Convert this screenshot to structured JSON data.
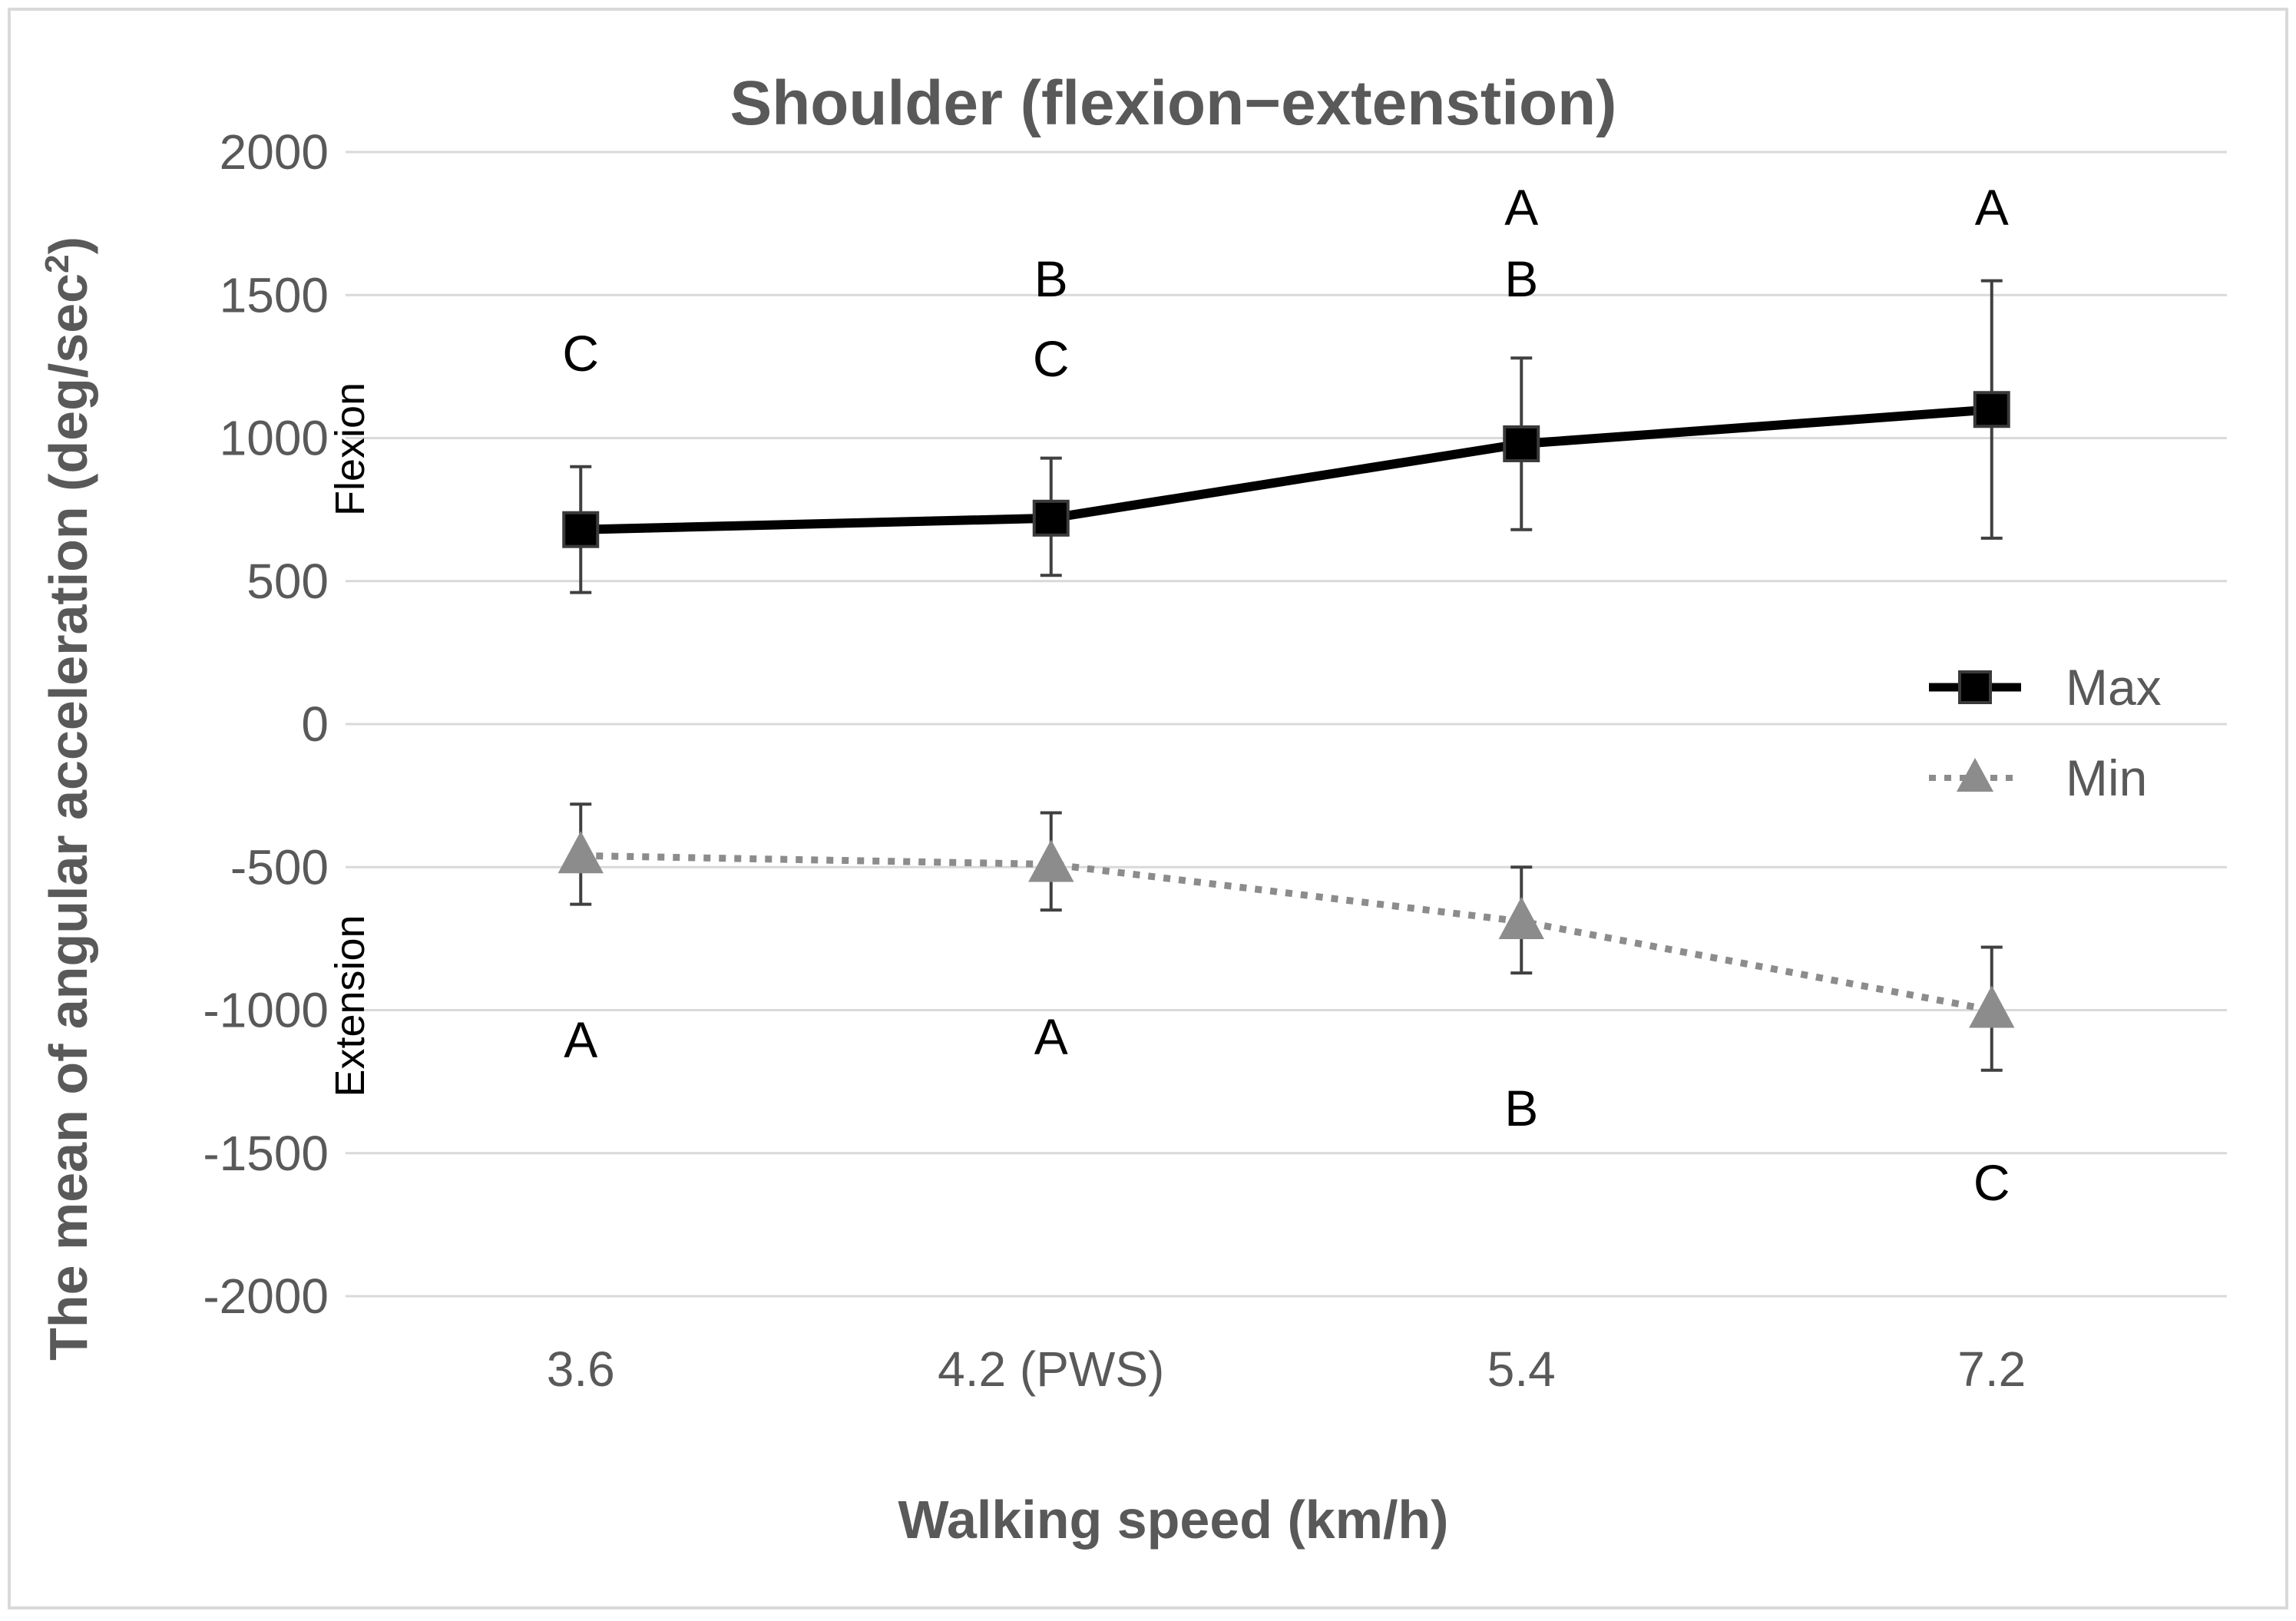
{
  "chart_data": {
    "type": "line",
    "title": "Shoulder (flexion−extenstion)",
    "xlabel": "Walking speed (km/h)",
    "ylabel": "The mean of angular acceleration (deg/sec",
    "ylabel_superscript": "2",
    "ylabel_suffix": ")",
    "categories": [
      "3.6",
      "4.2 (PWS)",
      "5.4",
      "7.2"
    ],
    "ylim": [
      -2000,
      2000
    ],
    "yticks": [
      2000,
      1500,
      1000,
      500,
      0,
      -500,
      -1000,
      -1500,
      -2000
    ],
    "grid": true,
    "legend_position": "right",
    "region_labels": {
      "upper": "Flexion",
      "lower": "Extension"
    },
    "series": [
      {
        "name": "Max",
        "marker": "square",
        "line_style": "solid",
        "color": "#000000",
        "values": [
          680,
          720,
          980,
          1100
        ],
        "error_low": [
          460,
          520,
          680,
          650
        ],
        "error_high": [
          900,
          930,
          1280,
          1550
        ]
      },
      {
        "name": "Min",
        "marker": "triangle",
        "line_style": "dotted",
        "color": "#8c8c8c",
        "values": [
          -460,
          -490,
          -690,
          -1000
        ],
        "error_low": [
          -630,
          -650,
          -870,
          -1210
        ],
        "error_high": [
          -280,
          -310,
          -500,
          -780
        ]
      }
    ],
    "annotations": [
      {
        "category": "3.6",
        "value": 1300,
        "text": "C"
      },
      {
        "category": "4.2 (PWS)",
        "value": 1560,
        "text": "B"
      },
      {
        "category": "4.2 (PWS)",
        "value": 1280,
        "text": "C"
      },
      {
        "category": "5.4",
        "value": 1810,
        "text": "A"
      },
      {
        "category": "5.4",
        "value": 1560,
        "text": "B"
      },
      {
        "category": "7.2",
        "value": 1810,
        "text": "A"
      },
      {
        "category": "3.6",
        "value": -1100,
        "text": "A"
      },
      {
        "category": "4.2 (PWS)",
        "value": -1090,
        "text": "A"
      },
      {
        "category": "5.4",
        "value": -1340,
        "text": "B"
      },
      {
        "category": "7.2",
        "value": -1600,
        "text": "C"
      }
    ]
  }
}
